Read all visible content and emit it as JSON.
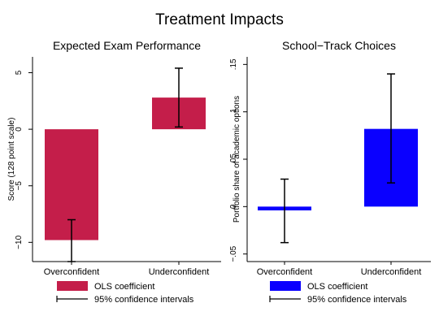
{
  "figure_title": "Treatment Impacts",
  "chart_data": [
    {
      "type": "bar",
      "title": "Expected Exam Performance",
      "xlabel": "",
      "ylabel": "Score (128 point scale)",
      "categories": [
        "Overconfident",
        "Underconfident"
      ],
      "values": [
        -9.8,
        2.8
      ],
      "ci_low": [
        -11.7,
        0.2
      ],
      "ci_high": [
        -8.0,
        5.4
      ],
      "ylim": [
        -11.7,
        6.4
      ],
      "yticks": [
        -10,
        -5,
        0,
        5
      ],
      "ytick_labels": [
        "−10",
        "−5",
        "0",
        "5"
      ],
      "bar_color": "#c41e4a",
      "legend": {
        "bar_label": "OLS coefficient",
        "ci_label": "95% confidence intervals"
      },
      "grid": false
    },
    {
      "type": "bar",
      "title": "School−Track Choices",
      "xlabel": "",
      "ylabel": "Portfolio share of academic options",
      "categories": [
        "Overconfident",
        "Underconfident"
      ],
      "values": [
        -0.004,
        0.082
      ],
      "ci_low": [
        -0.038,
        0.025
      ],
      "ci_high": [
        0.029,
        0.14
      ],
      "ylim": [
        -0.058,
        0.158
      ],
      "yticks": [
        -0.05,
        0,
        0.05,
        0.1,
        0.15
      ],
      "ytick_labels": [
        "−.05",
        "0",
        ".05",
        ".1",
        ".15"
      ],
      "bar_color": "#0a00ff",
      "legend": {
        "bar_label": "OLS coefficient",
        "ci_label": "95% confidence intervals"
      },
      "grid": false
    }
  ]
}
